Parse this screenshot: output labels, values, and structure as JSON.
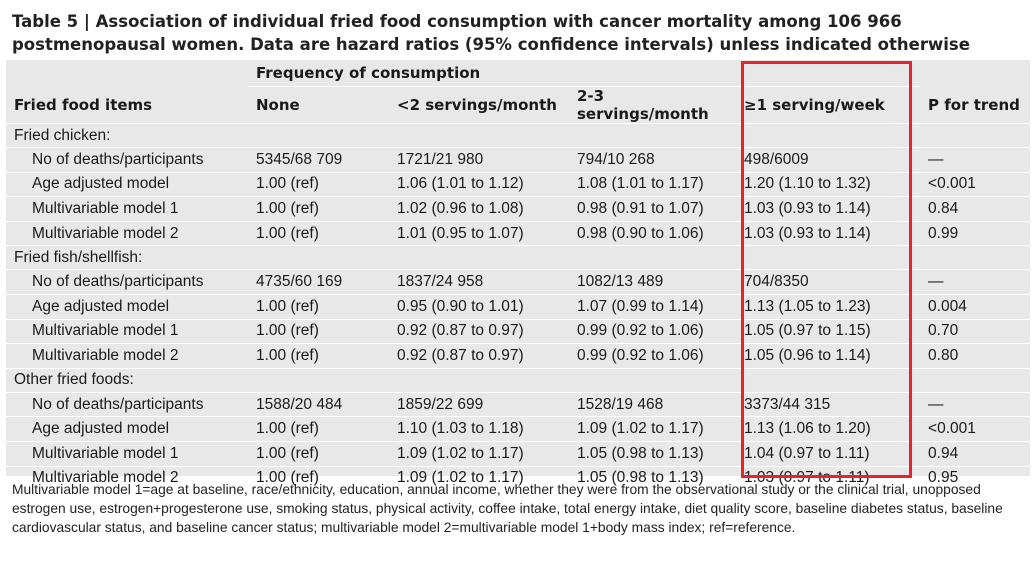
{
  "title": "Table 5 | Association of individual fried food consumption with cancer mortality among 106 966 postmenopausal women. Data are hazard ratios (95% confidence intervals) unless indicated otherwise",
  "header": {
    "group_label": "Frequency of consumption",
    "columns": [
      "Fried food items",
      "None",
      "<2 servings/month",
      "2-3 servings/month",
      "≥1 serving/week",
      "P for trend"
    ]
  },
  "sections": [
    {
      "label": "Fried chicken:",
      "rows": [
        {
          "label": "No of deaths/participants",
          "values": [
            "5345/68 709",
            "1721/21 980",
            "794/10 268",
            "498/6009",
            "—"
          ]
        },
        {
          "label": "Age adjusted model",
          "values": [
            "1.00 (ref)",
            "1.06 (1.01 to 1.12)",
            "1.08 (1.01 to 1.17)",
            "1.20 (1.10 to 1.32)",
            "<0.001"
          ]
        },
        {
          "label": "Multivariable model 1",
          "values": [
            "1.00 (ref)",
            "1.02 (0.96 to 1.08)",
            "0.98 (0.91 to 1.07)",
            "1.03 (0.93 to 1.14)",
            "0.84"
          ]
        },
        {
          "label": "Multivariable model 2",
          "values": [
            "1.00 (ref)",
            "1.01 (0.95 to 1.07)",
            "0.98 (0.90 to 1.06)",
            "1.03 (0.93 to 1.14)",
            "0.99"
          ]
        }
      ]
    },
    {
      "label": "Fried fish/shellfish:",
      "rows": [
        {
          "label": "No of deaths/participants",
          "values": [
            "4735/60 169",
            "1837/24 958",
            "1082/13 489",
            "704/8350",
            "—"
          ]
        },
        {
          "label": "Age adjusted model",
          "values": [
            "1.00 (ref)",
            "0.95 (0.90 to 1.01)",
            "1.07 (0.99 to 1.14)",
            "1.13 (1.05 to 1.23)",
            "0.004"
          ]
        },
        {
          "label": "Multivariable model 1",
          "values": [
            "1.00 (ref)",
            "0.92 (0.87 to 0.97)",
            "0.99 (0.92 to 1.06)",
            "1.05 (0.97 to 1.15)",
            "0.70"
          ]
        },
        {
          "label": "Multivariable model 2",
          "values": [
            "1.00 (ref)",
            "0.92 (0.87 to 0.97)",
            "0.99 (0.92 to 1.06)",
            "1.05 (0.96 to 1.14)",
            "0.80"
          ]
        }
      ]
    },
    {
      "label": "Other fried foods:",
      "rows": [
        {
          "label": "No of deaths/participants",
          "values": [
            "1588/20 484",
            "1859/22 699",
            "1528/19 468",
            "3373/44 315",
            "—"
          ]
        },
        {
          "label": "Age adjusted model",
          "values": [
            "1.00 (ref)",
            "1.10 (1.03 to 1.18)",
            "1.09 (1.02 to 1.17)",
            "1.13 (1.06 to 1.20)",
            "<0.001"
          ]
        },
        {
          "label": "Multivariable model 1",
          "values": [
            "1.00 (ref)",
            "1.09 (1.02 to 1.17)",
            "1.05 (0.98 to 1.13)",
            "1.04 (0.97 to 1.11)",
            "0.94"
          ]
        },
        {
          "label": "Multivariable model 2",
          "values": [
            "1.00 (ref)",
            "1.09 (1.02 to 1.17)",
            "1.05 (0.98 to 1.13)",
            "1.03 (0.97 to 1.11)",
            "0.95"
          ]
        }
      ]
    }
  ],
  "footnote": "Multivariable model 1=age at baseline, race/ethnicity, education, annual income, whether they were from the observational study or the clinical trial, unopposed estrogen use, estrogen+progesterone use, smoking status, physical activity, coffee intake, total energy intake, diet quality score, baseline diabetes status, baseline cardiovascular status, and baseline cancer status; multivariable model 2=multivariable model 1+body mass index; ref=reference.",
  "highlight_color": "#e4262c",
  "table_background": "#e8e8e8"
}
